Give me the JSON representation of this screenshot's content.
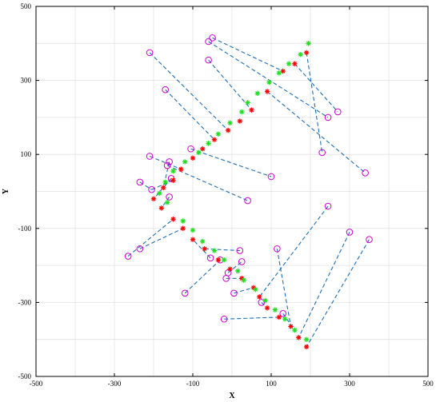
{
  "chart_data": {
    "type": "scatter",
    "title": "",
    "xlabel": "X",
    "ylabel": "Y",
    "xlim": [
      -500,
      500
    ],
    "ylim": [
      -500,
      500
    ],
    "xticks": [
      -500,
      -300,
      -100,
      100,
      300,
      500
    ],
    "yticks": [
      -500,
      -300,
      -100,
      100,
      300,
      500
    ],
    "grid": true,
    "colors": {
      "circles": "#d000d0",
      "red_markers": "#ff0000",
      "green_markers": "#22dd22",
      "dashed_lines": "#1f6fb4"
    },
    "series": [
      {
        "marker": "circle",
        "points": [
          [
            -210,
            375
          ],
          [
            -50,
            415
          ],
          [
            -60,
            405
          ],
          [
            -60,
            355
          ],
          [
            -170,
            275
          ],
          [
            -105,
            115
          ],
          [
            -210,
            95
          ],
          [
            -165,
            70
          ],
          [
            -235,
            25
          ],
          [
            -205,
            5
          ],
          [
            -160,
            80
          ],
          [
            -155,
            35
          ],
          [
            -160,
            -15
          ],
          [
            245,
            200
          ],
          [
            270,
            215
          ],
          [
            230,
            105
          ],
          [
            340,
            50
          ],
          [
            100,
            40
          ],
          [
            40,
            -25
          ],
          [
            -265,
            -175
          ],
          [
            -235,
            -155
          ],
          [
            20,
            -160
          ],
          [
            -55,
            -180
          ],
          [
            -30,
            -185
          ],
          [
            -120,
            -275
          ],
          [
            -10,
            -220
          ],
          [
            -15,
            -235
          ],
          [
            5,
            -275
          ],
          [
            25,
            -190
          ],
          [
            115,
            -155
          ],
          [
            245,
            -40
          ],
          [
            300,
            -110
          ],
          [
            350,
            -130
          ],
          [
            -20,
            -345
          ],
          [
            130,
            -330
          ],
          [
            75,
            -300
          ]
        ]
      },
      {
        "marker": "asterisk-red",
        "points": [
          [
            190,
            375
          ],
          [
            160,
            345
          ],
          [
            130,
            325
          ],
          [
            90,
            270
          ],
          [
            50,
            220
          ],
          [
            20,
            190
          ],
          [
            -10,
            165
          ],
          [
            -45,
            140
          ],
          [
            -75,
            115
          ],
          [
            -100,
            90
          ],
          [
            -130,
            60
          ],
          [
            -150,
            30
          ],
          [
            -175,
            10
          ],
          [
            -200,
            -20
          ],
          [
            -180,
            -45
          ],
          [
            -150,
            -75
          ],
          [
            -125,
            -100
          ],
          [
            -100,
            -130
          ],
          [
            -70,
            -155
          ],
          [
            -35,
            -185
          ],
          [
            -5,
            -210
          ],
          [
            25,
            -235
          ],
          [
            55,
            -260
          ],
          [
            70,
            -285
          ],
          [
            90,
            -315
          ],
          [
            120,
            -340
          ],
          [
            150,
            -365
          ],
          [
            170,
            -395
          ],
          [
            190,
            -420
          ]
        ]
      },
      {
        "marker": "asterisk-green",
        "points": [
          [
            195,
            400
          ],
          [
            175,
            370
          ],
          [
            145,
            345
          ],
          [
            120,
            320
          ],
          [
            95,
            295
          ],
          [
            65,
            265
          ],
          [
            40,
            240
          ],
          [
            25,
            215
          ],
          [
            -5,
            185
          ],
          [
            -35,
            155
          ],
          [
            -60,
            130
          ],
          [
            -85,
            105
          ],
          [
            -120,
            80
          ],
          [
            -150,
            55
          ],
          [
            -170,
            25
          ],
          [
            -185,
            -5
          ],
          [
            -165,
            -30
          ],
          [
            -125,
            -80
          ],
          [
            -100,
            -105
          ],
          [
            -75,
            -135
          ],
          [
            -45,
            -160
          ],
          [
            -20,
            -185
          ],
          [
            15,
            -215
          ],
          [
            30,
            -240
          ],
          [
            60,
            -265
          ],
          [
            85,
            -295
          ],
          [
            110,
            -320
          ],
          [
            135,
            -345
          ],
          [
            160,
            -375
          ],
          [
            190,
            -400
          ]
        ]
      },
      {
        "marker": "dashed-line",
        "segments": [
          [
            [
              -210,
              375
            ],
            [
              -10,
              165
            ]
          ],
          [
            [
              -50,
              415
            ],
            [
              130,
              325
            ]
          ],
          [
            [
              -60,
              405
            ],
            [
              245,
              200
            ]
          ],
          [
            [
              -60,
              355
            ],
            [
              50,
              220
            ]
          ],
          [
            [
              -170,
              275
            ],
            [
              -45,
              140
            ]
          ],
          [
            [
              -105,
              115
            ],
            [
              100,
              40
            ]
          ],
          [
            [
              -210,
              95
            ],
            [
              -130,
              60
            ]
          ],
          [
            [
              -165,
              70
            ],
            [
              40,
              -25
            ]
          ],
          [
            [
              -235,
              25
            ],
            [
              -205,
              5
            ]
          ],
          [
            [
              -205,
              5
            ],
            [
              -150,
              30
            ]
          ],
          [
            [
              -160,
              80
            ],
            [
              -175,
              10
            ]
          ],
          [
            [
              -155,
              35
            ],
            [
              -200,
              -20
            ]
          ],
          [
            [
              -160,
              -15
            ],
            [
              -180,
              -45
            ]
          ],
          [
            [
              160,
              345
            ],
            [
              270,
              215
            ]
          ],
          [
            [
              190,
              375
            ],
            [
              230,
              105
            ]
          ],
          [
            [
              90,
              270
            ],
            [
              340,
              50
            ]
          ],
          [
            [
              -265,
              -175
            ],
            [
              -150,
              -75
            ]
          ],
          [
            [
              -235,
              -155
            ],
            [
              -125,
              -100
            ]
          ],
          [
            [
              -70,
              -155
            ],
            [
              20,
              -160
            ]
          ],
          [
            [
              -55,
              -180
            ],
            [
              -100,
              -130
            ]
          ],
          [
            [
              -120,
              -275
            ],
            [
              -30,
              -185
            ]
          ],
          [
            [
              -10,
              -220
            ],
            [
              25,
              -190
            ]
          ],
          [
            [
              -15,
              -235
            ],
            [
              25,
              -235
            ]
          ],
          [
            [
              5,
              -275
            ],
            [
              55,
              -260
            ]
          ],
          [
            [
              115,
              -155
            ],
            [
              150,
              -365
            ]
          ],
          [
            [
              245,
              -40
            ],
            [
              70,
              -285
            ]
          ],
          [
            [
              300,
              -110
            ],
            [
              170,
              -395
            ]
          ],
          [
            [
              350,
              -130
            ],
            [
              190,
              -420
            ]
          ],
          [
            [
              -20,
              -345
            ],
            [
              120,
              -340
            ]
          ],
          [
            [
              130,
              -330
            ],
            [
              160,
              -375
            ]
          ],
          [
            [
              75,
              -300
            ],
            [
              90,
              -315
            ]
          ]
        ]
      }
    ]
  }
}
